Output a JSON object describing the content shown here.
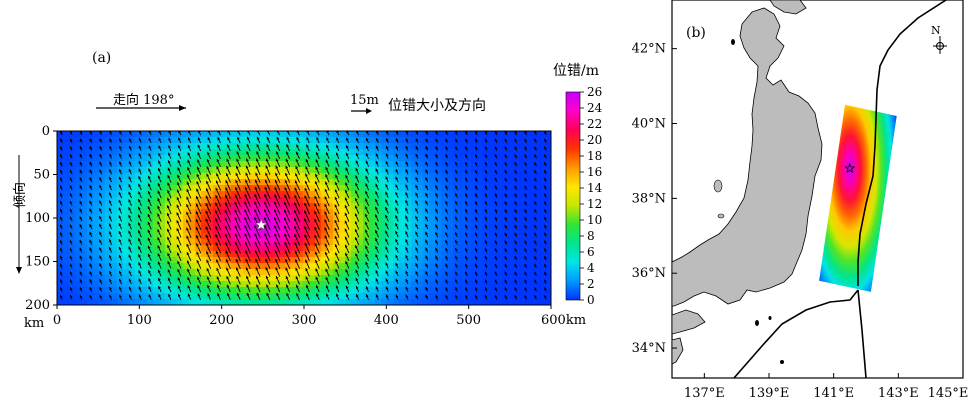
{
  "colors": {
    "land": "#bcbcbc",
    "coast": "#000000",
    "colormap": [
      "#0033ff",
      "#0099ff",
      "#00e5e5",
      "#00e58c",
      "#33e533",
      "#c8e600",
      "#ffe600",
      "#ff9900",
      "#ff3300",
      "#ff0055",
      "#ff00c8",
      "#c800ff"
    ]
  },
  "chart_data": [
    {
      "type": "heatmap",
      "panel_label": "(a)",
      "title": "",
      "xlabel": "km",
      "ylabel": "倾向",
      "xlim": [
        0,
        600
      ],
      "ylim": [
        0,
        200
      ],
      "x_ticks": [
        "0",
        "100",
        "200",
        "300",
        "400",
        "500",
        "600km"
      ],
      "x_ticks_values": [
        0,
        100,
        200,
        300,
        400,
        500,
        600
      ],
      "y_ticks": [
        "0",
        "50",
        "100",
        "150",
        "200"
      ],
      "y_ticks_values": [
        0,
        50,
        100,
        150,
        200
      ],
      "y_axis_label_extra": "km",
      "strike_label": "走向 198°",
      "arrow_scale_label": "15m",
      "arrow_legend_label": "位错大小及方向",
      "colorbar": {
        "title": "位错/m",
        "min": 0,
        "max": 26,
        "ticks": [
          "26",
          "24",
          "22",
          "20",
          "18",
          "16",
          "14",
          "12",
          "10",
          "8",
          "6",
          "4",
          "2",
          "0"
        ],
        "tick_values": [
          26,
          24,
          22,
          20,
          18,
          16,
          14,
          12,
          10,
          8,
          6,
          4,
          2,
          0
        ]
      },
      "epicenter": {
        "x_km": 248,
        "depth_km": 108,
        "marker": "star"
      },
      "slip_distribution": {
        "peak_slip_m": 25,
        "peak_x_km": 248,
        "peak_depth_km": 108,
        "half_width_x_km": 95,
        "half_width_depth_km": 55,
        "unit": "m"
      },
      "arrow_grid": {
        "x_step_km": 12,
        "depth_step_km": 9,
        "direction": "up, slightly left"
      }
    },
    {
      "type": "heatmap",
      "panel_label": "(b)",
      "title": "",
      "xlabel": "",
      "ylabel": "",
      "x_ticks": [
        "137°E",
        "139°E",
        "141°E",
        "143°E",
        "145°E"
      ],
      "x_ticks_values": [
        137,
        139,
        141,
        143,
        145
      ],
      "y_ticks": [
        "42°N",
        "40°N",
        "38°N",
        "36°N",
        "34°N"
      ],
      "y_ticks_values": [
        42,
        40,
        38,
        36,
        34
      ],
      "xlim": [
        136,
        145
      ],
      "ylim": [
        33.2,
        43.3
      ],
      "north_arrow_label": "N",
      "epicenter": {
        "lon": 141.5,
        "lat": 38.8,
        "marker": "star"
      },
      "fault_plane": {
        "corners_lonlat": [
          [
            141.35,
            40.5
          ],
          [
            142.95,
            40.2
          ],
          [
            142.15,
            35.5
          ],
          [
            140.55,
            35.8
          ]
        ],
        "colormap_same_as": "(a)"
      }
    }
  ]
}
